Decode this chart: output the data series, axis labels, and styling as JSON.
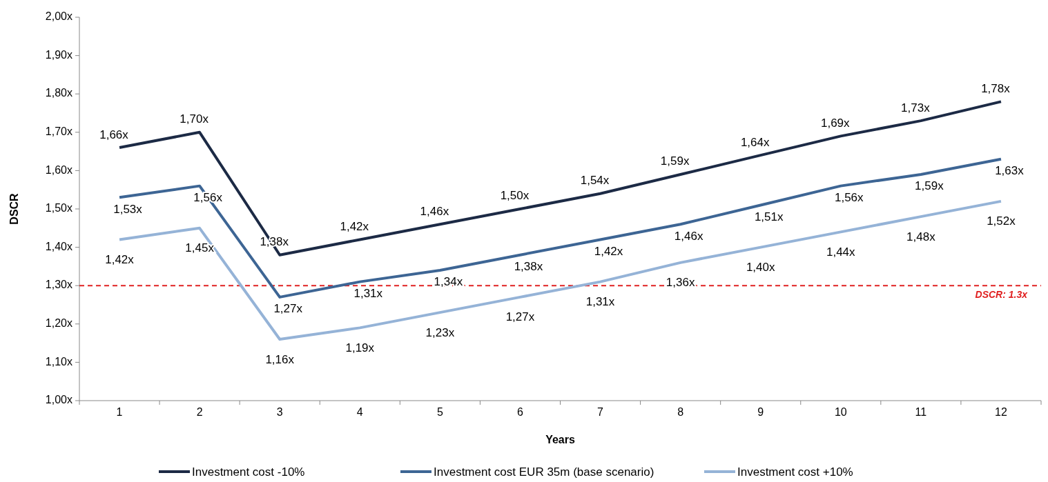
{
  "chart_data": {
    "type": "line",
    "xlabel": "Years",
    "ylabel": "DSCR",
    "categories": [
      "1",
      "2",
      "3",
      "4",
      "5",
      "6",
      "7",
      "8",
      "9",
      "10",
      "11",
      "12"
    ],
    "ylim": [
      1.0,
      2.0
    ],
    "yticks": [
      {
        "value": 1.0,
        "label": "1,00x"
      },
      {
        "value": 1.1,
        "label": "1,10x"
      },
      {
        "value": 1.2,
        "label": "1,20x"
      },
      {
        "value": 1.3,
        "label": "1,30x"
      },
      {
        "value": 1.4,
        "label": "1,40x"
      },
      {
        "value": 1.5,
        "label": "1,50x"
      },
      {
        "value": 1.6,
        "label": "1,60x"
      },
      {
        "value": 1.7,
        "label": "1,70x"
      },
      {
        "value": 1.8,
        "label": "1,80x"
      },
      {
        "value": 1.9,
        "label": "1,90x"
      },
      {
        "value": 2.0,
        "label": "2,00x"
      }
    ],
    "series": [
      {
        "name": "Investment cost -10%",
        "color": "#1c2a45",
        "values": [
          1.66,
          1.7,
          1.38,
          1.42,
          1.46,
          1.5,
          1.54,
          1.59,
          1.64,
          1.69,
          1.73,
          1.78
        ],
        "value_labels": [
          "1,66x",
          "1,70x",
          "1,38x",
          "1,42x",
          "1,46x",
          "1,50x",
          "1,54x",
          "1,59x",
          "1,64x",
          "1,69x",
          "1,73x",
          "1,78x"
        ]
      },
      {
        "name": "Investment cost  EUR 35m (base scenario)",
        "color": "#3d6594",
        "values": [
          1.53,
          1.56,
          1.27,
          1.31,
          1.34,
          1.38,
          1.42,
          1.46,
          1.51,
          1.56,
          1.59,
          1.63
        ],
        "value_labels": [
          "1,53x",
          "1,56x",
          "1,27x",
          "1,31x",
          "1,34x",
          "1,38x",
          "1,42x",
          "1,46x",
          "1,51x",
          "1,56x",
          "1,59x",
          "1,63x"
        ]
      },
      {
        "name": "Investment cost +10%",
        "color": "#95b3d7",
        "values": [
          1.42,
          1.45,
          1.16,
          1.19,
          1.23,
          1.27,
          1.31,
          1.36,
          1.4,
          1.44,
          1.48,
          1.52
        ],
        "value_labels": [
          "1,42x",
          "1,45x",
          "1,16x",
          "1,19x",
          "1,23x",
          "1,27x",
          "1,31x",
          "1,36x",
          "1,40x",
          "1,44x",
          "1,48x",
          "1,52x"
        ]
      }
    ],
    "ref_lines": [
      {
        "axis": "y",
        "value": 1.3,
        "label": "DSCR: 1.3x",
        "color": "#e02020",
        "line_style": "dashed"
      }
    ],
    "legend": "bottom",
    "grid": false
  }
}
